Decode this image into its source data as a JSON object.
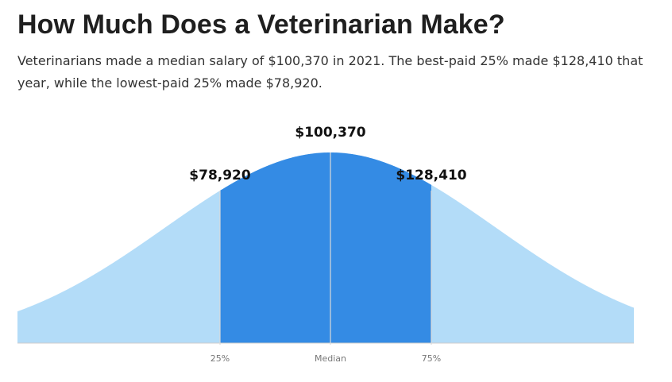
{
  "header": {
    "title": "How Much Does a Veterinarian Make?",
    "subtitle": "Veterinarians made a median salary of $100,370 in 2021. The best-paid 25% made $128,410 that year, while the lowest-paid 25% made $78,920."
  },
  "colors": {
    "outer_fill": "#b3dcf8",
    "inner_fill": "#348be4",
    "marker_line": "#d9d9d9",
    "baseline": "#cccccc"
  },
  "chart_data": {
    "type": "area",
    "series_shape": "normal-distribution",
    "markers": [
      {
        "percentile": 25,
        "tick_label": "25%",
        "value": 78920,
        "value_label": "$78,920"
      },
      {
        "percentile": 50,
        "tick_label": "Median",
        "value": 100370,
        "value_label": "$100,370"
      },
      {
        "percentile": 75,
        "tick_label": "75%",
        "value": 128410,
        "value_label": "$128,410"
      }
    ],
    "highlighted_range": [
      78920,
      128410
    ],
    "grid": false,
    "legend": "none"
  }
}
